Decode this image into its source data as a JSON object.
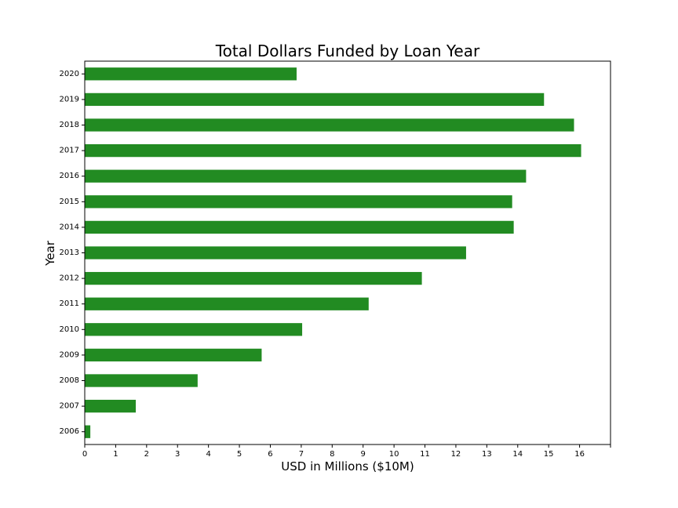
{
  "chart_data": {
    "type": "bar",
    "orientation": "horizontal",
    "title": "Total Dollars Funded by Loan Year",
    "xlabel": "USD in Millions ($10M)",
    "ylabel": "Year",
    "categories": [
      "2006",
      "2007",
      "2008",
      "2009",
      "2010",
      "2011",
      "2012",
      "2013",
      "2014",
      "2015",
      "2016",
      "2017",
      "2018",
      "2019",
      "2020"
    ],
    "values": [
      0.18,
      1.65,
      3.65,
      5.72,
      7.03,
      9.18,
      10.9,
      12.33,
      13.87,
      13.82,
      14.27,
      16.05,
      15.82,
      14.85,
      6.85
    ],
    "xlim": [
      0,
      17
    ],
    "xticks": [
      0,
      1,
      2,
      3,
      4,
      5,
      6,
      7,
      8,
      9,
      10,
      11,
      12,
      13,
      14,
      15,
      16
    ],
    "bar_color": "#228b22",
    "grid": false,
    "legend": "none"
  }
}
